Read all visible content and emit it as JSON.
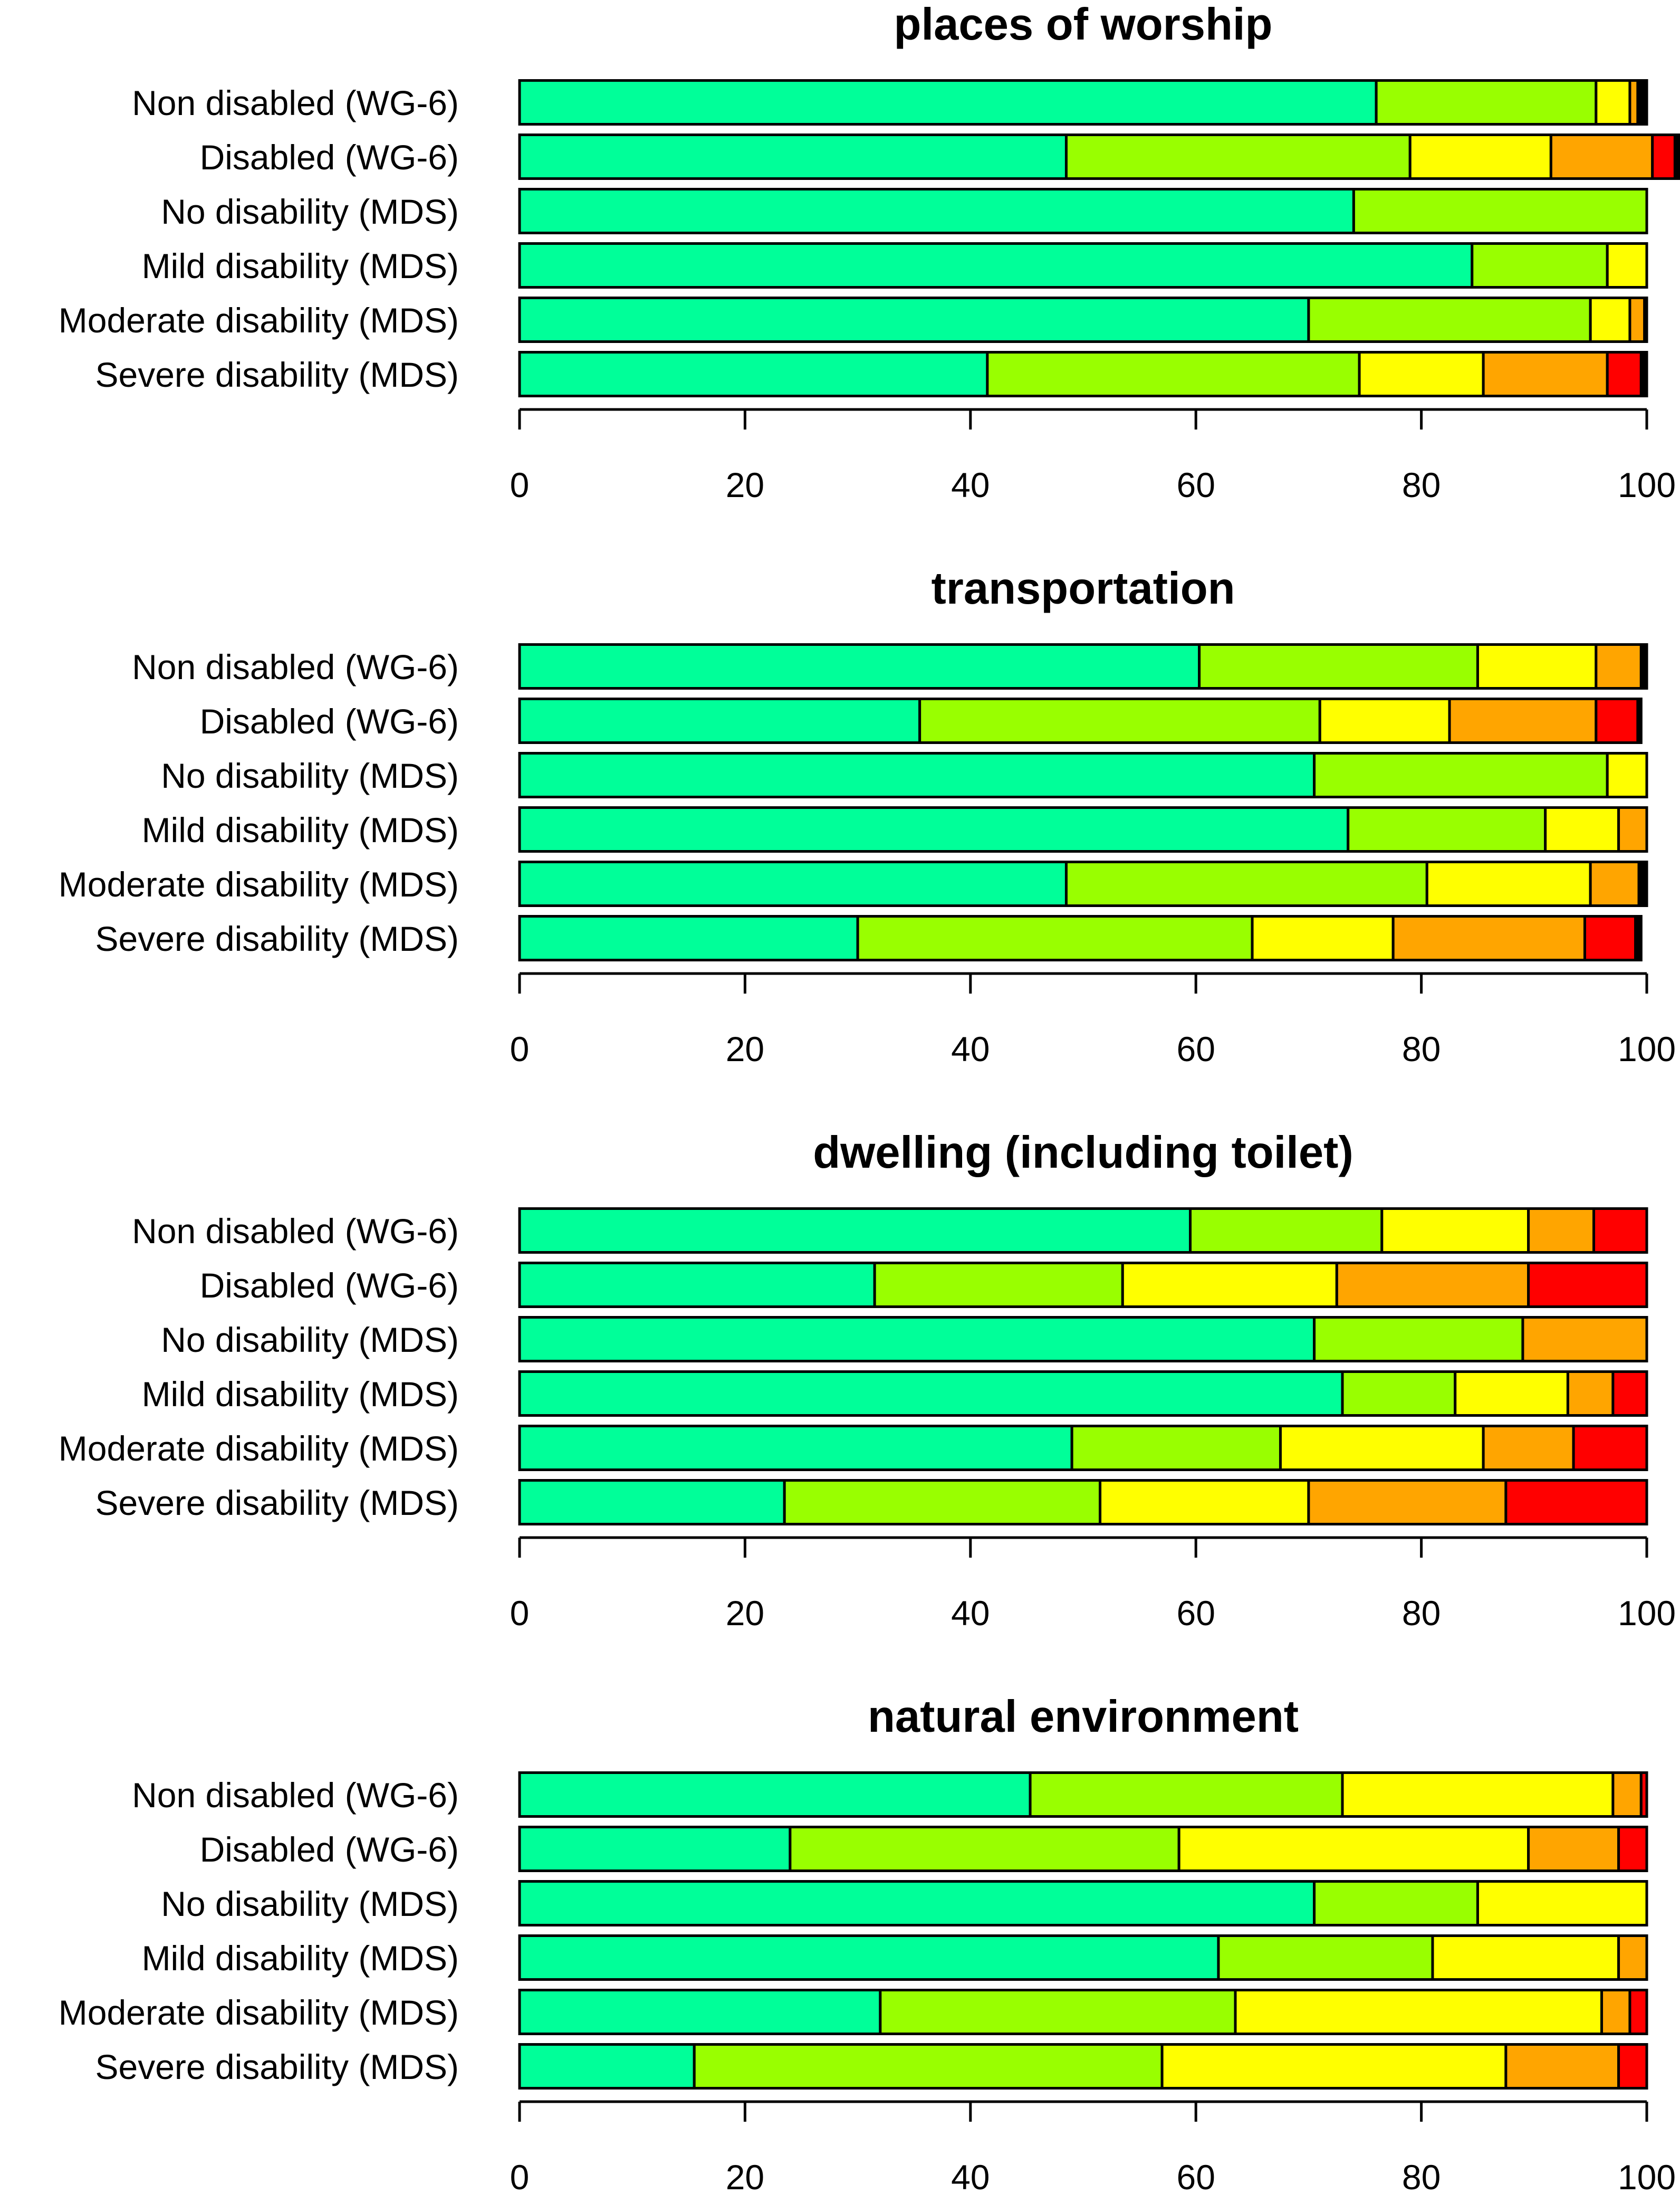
{
  "colors": [
    "#00FF99",
    "#99FF00",
    "#FFFF00",
    "#FFA500",
    "#FF0000",
    "#000000"
  ],
  "chart_data": [
    {
      "type": "bar",
      "orientation": "horizontal-stacked",
      "title": "places of worship",
      "categories": [
        "Non disabled (WG-6)",
        "Disabled (WG-6)",
        "No disability (MDS)",
        "Mild disability (MDS)",
        "Moderate disability (MDS)",
        "Severe disability (MDS)"
      ],
      "segments": [
        [
          76,
          19.5,
          3,
          0.7,
          0,
          0.8
        ],
        [
          48.5,
          30.5,
          12.5,
          9,
          2,
          0.5
        ],
        [
          74,
          26,
          0,
          0,
          0,
          0
        ],
        [
          84.5,
          12,
          3.5,
          0,
          0,
          0
        ],
        [
          70,
          25,
          3.5,
          1.3,
          0,
          0.2
        ],
        [
          41.5,
          33,
          11,
          11,
          3,
          0.5
        ]
      ],
      "xlim": [
        0,
        100
      ],
      "xticks": [
        "0",
        "20",
        "40",
        "60",
        "80",
        "100"
      ]
    },
    {
      "type": "bar",
      "orientation": "horizontal-stacked",
      "title": "transportation",
      "categories": [
        "Non disabled (WG-6)",
        "Disabled (WG-6)",
        "No disability (MDS)",
        "Mild disability (MDS)",
        "Moderate disability (MDS)",
        "Severe disability (MDS)"
      ],
      "segments": [
        [
          60.3,
          24.7,
          10.5,
          4,
          0,
          0.5
        ],
        [
          35.5,
          35.5,
          11.5,
          13,
          3.7,
          0.3
        ],
        [
          70.5,
          26,
          3.5,
          0,
          0,
          0
        ],
        [
          73.5,
          17.5,
          6.5,
          2.5,
          0,
          0
        ],
        [
          48.5,
          32,
          14.5,
          4.3,
          0,
          0.7
        ],
        [
          30,
          35,
          12.5,
          17,
          4.5,
          0.5
        ]
      ],
      "xlim": [
        0,
        100
      ],
      "xticks": [
        "0",
        "20",
        "40",
        "60",
        "80",
        "100"
      ]
    },
    {
      "type": "bar",
      "orientation": "horizontal-stacked",
      "title": "dwelling (including toilet)",
      "categories": [
        "Non disabled (WG-6)",
        "Disabled (WG-6)",
        "No disability (MDS)",
        "Mild disability (MDS)",
        "Moderate disability (MDS)",
        "Severe disability (MDS)"
      ],
      "segments": [
        [
          59.5,
          17,
          13,
          5.8,
          4.7,
          0
        ],
        [
          31.5,
          22,
          19,
          17,
          10.5,
          0
        ],
        [
          70.5,
          18.5,
          0,
          11,
          0,
          0
        ],
        [
          73,
          10,
          10,
          4,
          3,
          0
        ],
        [
          49,
          18.5,
          18,
          8,
          6.5,
          0
        ],
        [
          23.5,
          28,
          18.5,
          17.5,
          12.5,
          0
        ]
      ],
      "xlim": [
        0,
        100
      ],
      "xticks": [
        "0",
        "20",
        "40",
        "60",
        "80",
        "100"
      ]
    },
    {
      "type": "bar",
      "orientation": "horizontal-stacked",
      "title": "natural environment",
      "categories": [
        "Non disabled (WG-6)",
        "Disabled (WG-6)",
        "No disability (MDS)",
        "Mild disability (MDS)",
        "Moderate disability (MDS)",
        "Severe disability (MDS)"
      ],
      "segments": [
        [
          45.3,
          27.7,
          24,
          2.5,
          0.5,
          0
        ],
        [
          24,
          34.5,
          31,
          8,
          2.5,
          0
        ],
        [
          70.5,
          14.5,
          15,
          0,
          0,
          0
        ],
        [
          62,
          19,
          16.5,
          2.5,
          0,
          0
        ],
        [
          32,
          31.5,
          32.5,
          2.5,
          1.5,
          0
        ],
        [
          15.5,
          41.5,
          30.5,
          10,
          2.5,
          0
        ]
      ],
      "xlim": [
        0,
        100
      ],
      "xticks": [
        "0",
        "20",
        "40",
        "60",
        "80",
        "100"
      ]
    }
  ]
}
